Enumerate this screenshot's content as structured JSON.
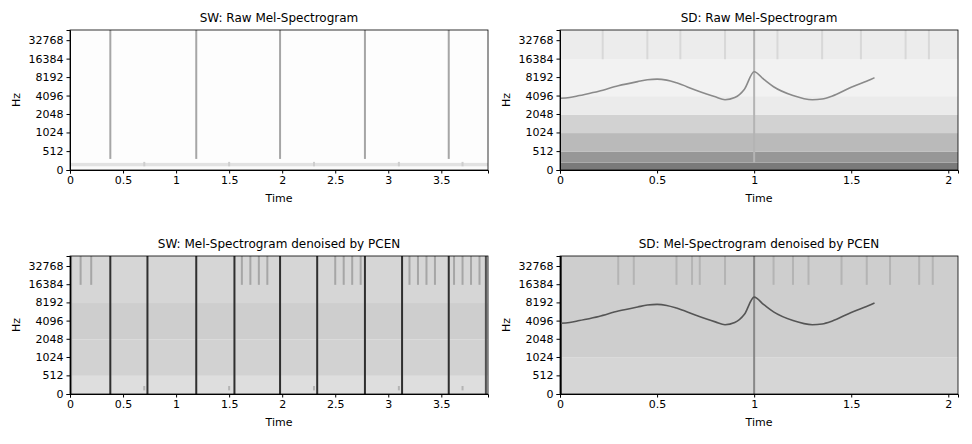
{
  "chart_data": [
    {
      "type": "heatmap",
      "title": "SW: Raw Mel-Spectrogram",
      "x_label": "Time",
      "y_label": "Hz",
      "xlim": [
        0,
        3.94
      ],
      "xticks": [
        0,
        0.5,
        1,
        1.5,
        2,
        2.5,
        3,
        3.5
      ],
      "ylim": [
        0,
        48000
      ],
      "yticks": [
        0,
        512,
        1024,
        2048,
        4096,
        8192,
        16384,
        32768
      ],
      "log": "y",
      "background": {
        "y": [
          0,
          100,
          200,
          48000
        ],
        "values": [
          0.03,
          0.2,
          0.02
        ]
      },
      "clicks": {
        "x": [
          0.38,
          1.19,
          1.98,
          2.78,
          3.57,
          0.7,
          1.5,
          2.3,
          3.1,
          3.7
        ],
        "fmin": [
          300,
          300,
          300,
          300,
          300,
          100,
          100,
          100,
          100,
          100
        ],
        "fmax": [
          48000,
          48000,
          48000,
          48000,
          48000,
          220,
          220,
          220,
          220,
          220
        ],
        "values": [
          0.45,
          0.45,
          0.45,
          0.45,
          0.45,
          0.3,
          0.3,
          0.3,
          0.3,
          0.3
        ]
      },
      "whistles": []
    },
    {
      "type": "heatmap",
      "title": "SD: Raw Mel-Spectrogram",
      "x_label": "Time",
      "y_label": "Hz",
      "xlim": [
        0,
        2.05
      ],
      "xticks": [
        0,
        0.5,
        1,
        1.5,
        2
      ],
      "ylim": [
        0,
        48000
      ],
      "yticks": [
        0,
        512,
        1024,
        2048,
        4096,
        8192,
        16384,
        32768
      ],
      "log": "y",
      "background": {
        "y": [
          0,
          200,
          500,
          1000,
          2000,
          4000,
          16000,
          48000
        ],
        "values": [
          0.6,
          0.5,
          0.38,
          0.28,
          0.15,
          0.1,
          0.14
        ]
      },
      "clicks": {
        "x": [
          1.0,
          0.22,
          0.45,
          0.62,
          0.85,
          1.12,
          1.35,
          1.55,
          1.78,
          1.9
        ],
        "fmin": [
          200,
          16000,
          16000,
          16000,
          16000,
          16000,
          16000,
          16000,
          16000,
          16000
        ],
        "fmax": [
          48000,
          48000,
          48000,
          48000,
          48000,
          48000,
          48000,
          48000,
          48000,
          48000
        ],
        "values": [
          0.4,
          0.25,
          0.25,
          0.25,
          0.25,
          0.25,
          0.25,
          0.25,
          0.25,
          0.25
        ]
      },
      "whistles": [
        {
          "color": "#8a8a8a",
          "line_style": "solid",
          "x": [
            0,
            0.05,
            0.1,
            0.2,
            0.3,
            0.4,
            0.45,
            0.5,
            0.55,
            0.6,
            0.7,
            0.8,
            0.85,
            0.9,
            0.95,
            1.0,
            1.05,
            1.1,
            1.2,
            1.3,
            1.35,
            1.4,
            1.5,
            1.6,
            1.62
          ],
          "values": [
            3700,
            3800,
            4100,
            4800,
            5900,
            6900,
            7400,
            7600,
            7300,
            6600,
            5000,
            3900,
            3500,
            3800,
            5200,
            10000,
            7500,
            5700,
            4100,
            3500,
            3600,
            4000,
            5600,
            7500,
            8000
          ]
        }
      ]
    },
    {
      "type": "heatmap",
      "title": "SW: Mel-Spectrogram denoised by PCEN",
      "x_label": "Time",
      "y_label": "Hz",
      "xlim": [
        0,
        3.94
      ],
      "xticks": [
        0,
        0.5,
        1,
        1.5,
        2,
        2.5,
        3,
        3.5
      ],
      "ylim": [
        0,
        48000
      ],
      "yticks": [
        0,
        512,
        1024,
        2048,
        4096,
        8192,
        16384,
        32768
      ],
      "log": "y",
      "background": {
        "y": [
          0,
          500,
          2000,
          8000,
          48000
        ],
        "values": [
          0.22,
          0.28,
          0.3,
          0.26
        ]
      },
      "clicks": {
        "x": [
          0.01,
          0.38,
          0.73,
          1.19,
          1.55,
          1.98,
          2.33,
          2.78,
          3.13,
          3.57,
          3.92,
          0.7,
          1.5,
          2.3,
          3.1,
          3.7,
          0.1,
          0.2,
          1.62,
          1.7,
          1.78,
          1.86,
          2.5,
          2.58,
          2.66,
          2.74,
          3.2,
          3.28,
          3.36,
          3.44,
          3.62,
          3.7,
          3.78,
          3.86
        ],
        "fmin": [
          0,
          0,
          0,
          0,
          0,
          0,
          0,
          0,
          0,
          0,
          0,
          100,
          100,
          100,
          100,
          100,
          16000,
          16000,
          16000,
          16000,
          16000,
          16000,
          16000,
          16000,
          16000,
          16000,
          16000,
          16000,
          16000,
          16000,
          16000,
          16000,
          16000,
          16000
        ],
        "fmax": [
          48000,
          48000,
          48000,
          48000,
          48000,
          48000,
          48000,
          48000,
          48000,
          48000,
          48000,
          220,
          220,
          220,
          220,
          220,
          48000,
          48000,
          48000,
          48000,
          48000,
          48000,
          48000,
          48000,
          48000,
          48000,
          48000,
          48000,
          48000,
          48000,
          48000,
          48000,
          48000,
          48000
        ],
        "values": [
          0.6,
          0.85,
          0.85,
          0.85,
          0.85,
          0.85,
          0.85,
          0.85,
          0.85,
          0.85,
          0.75,
          0.4,
          0.4,
          0.4,
          0.4,
          0.4,
          0.45,
          0.45,
          0.45,
          0.45,
          0.45,
          0.45,
          0.45,
          0.45,
          0.45,
          0.45,
          0.45,
          0.45,
          0.45,
          0.45,
          0.45,
          0.45,
          0.45,
          0.45
        ]
      },
      "whistles": []
    },
    {
      "type": "heatmap",
      "title": "SD: Mel-Spectrogram denoised by PCEN",
      "x_label": "Time",
      "y_label": "Hz",
      "xlim": [
        0,
        2.05
      ],
      "xticks": [
        0,
        0.5,
        1,
        1.5,
        2
      ],
      "ylim": [
        0,
        48000
      ],
      "yticks": [
        0,
        512,
        1024,
        2048,
        4096,
        8192,
        16384,
        32768
      ],
      "log": "y",
      "background": {
        "y": [
          0,
          1000,
          48000
        ],
        "values": [
          0.26,
          0.3
        ]
      },
      "clicks": {
        "x": [
          0.005,
          1.0,
          0.3,
          0.38,
          0.6,
          0.68,
          0.72,
          0.85,
          1.1,
          1.2,
          1.28,
          1.45,
          1.58,
          1.7,
          1.85,
          1.92
        ],
        "fmin": [
          0,
          0,
          16000,
          16000,
          16000,
          16000,
          16000,
          16000,
          16000,
          16000,
          16000,
          16000,
          16000,
          16000,
          16000,
          16000
        ],
        "fmax": [
          48000,
          48000,
          48000,
          48000,
          48000,
          48000,
          48000,
          48000,
          48000,
          48000,
          48000,
          48000,
          48000,
          48000,
          48000,
          48000
        ],
        "values": [
          0.8,
          0.55,
          0.4,
          0.4,
          0.4,
          0.4,
          0.4,
          0.4,
          0.4,
          0.4,
          0.4,
          0.4,
          0.4,
          0.4,
          0.4,
          0.4
        ]
      },
      "whistles": [
        {
          "color": "#555555",
          "line_style": "solid",
          "x": [
            0,
            0.05,
            0.1,
            0.2,
            0.3,
            0.4,
            0.45,
            0.5,
            0.55,
            0.6,
            0.7,
            0.8,
            0.85,
            0.9,
            0.95,
            1.0,
            1.05,
            1.1,
            1.2,
            1.3,
            1.35,
            1.4,
            1.5,
            1.6,
            1.62
          ],
          "values": [
            3700,
            3800,
            4100,
            4800,
            5900,
            6900,
            7400,
            7600,
            7300,
            6600,
            5000,
            3900,
            3500,
            3800,
            5200,
            10000,
            7500,
            5700,
            4100,
            3500,
            3600,
            4000,
            5600,
            7500,
            8000
          ]
        }
      ]
    }
  ]
}
